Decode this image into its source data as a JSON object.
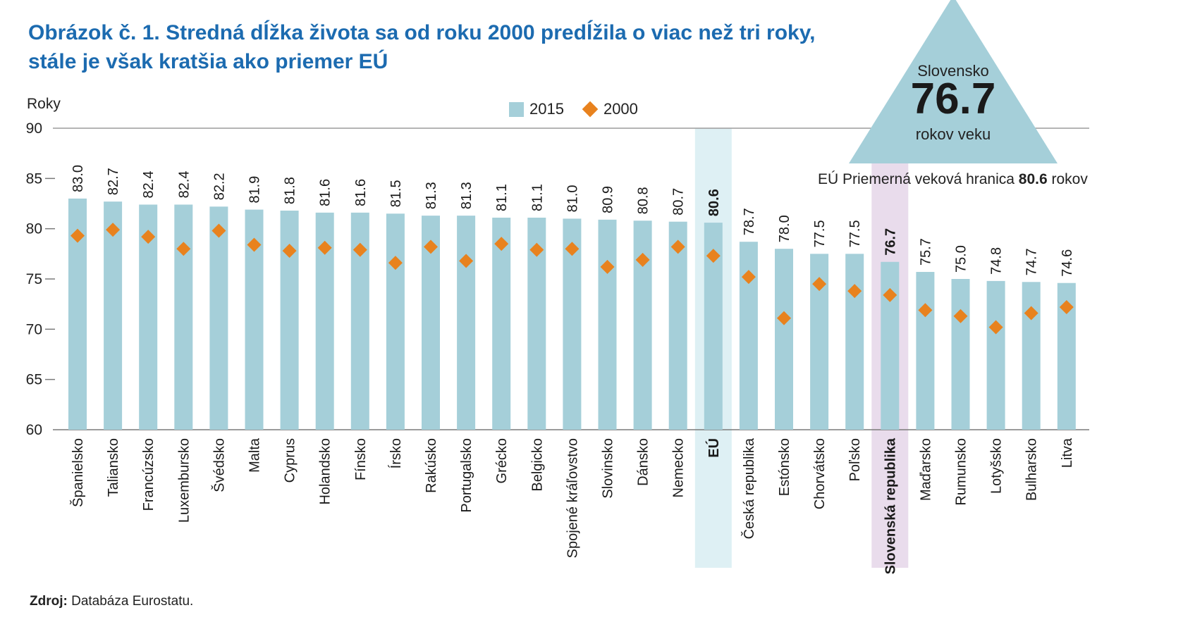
{
  "title": {
    "line1": "Obrázok č. 1. Stredná dĺžka života sa od roku 2000 predĺžila o viac než tri roky,",
    "line2": "stále je však kratšia ako priemer EÚ"
  },
  "y_axis_title": "Roky",
  "legend": {
    "items": [
      {
        "label": "2015",
        "marker": "square",
        "color": "#a5cfd9"
      },
      {
        "label": "2000",
        "marker": "diamond",
        "color": "#e8821e"
      }
    ]
  },
  "annotation": {
    "country": "Slovensko",
    "value": "76.7",
    "unit": "rokov veku"
  },
  "eu_note": {
    "prefix": "EÚ Priemerná veková hranica ",
    "value": "80.6",
    "suffix": " rokov"
  },
  "source": {
    "label": "Zdroj:",
    "text": " Databáza Eurostatu."
  },
  "colors": {
    "bar_2015": "#a5cfd9",
    "marker_2000": "#e8821e",
    "title_blue": "#1c6bb0",
    "band_eu": "#def0f4",
    "band_slovakia": "#e9dcec",
    "triangle": "#a5cfd9"
  },
  "chart_data": {
    "type": "bar",
    "title": "Stredná dĺžka života sa od roku 2000 predĺžila o viac než tri roky, stále je však kratšia ako priemer EÚ",
    "xlabel": "",
    "ylabel": "Roky",
    "ylim": [
      60,
      90
    ],
    "yticks": [
      60,
      65,
      70,
      75,
      80,
      85,
      90
    ],
    "grid": "horizontal lines at 90 and 60 only",
    "legend_position": "top center",
    "categories": [
      "Španielsko",
      "Taliansko",
      "Francúzsko",
      "Luxembursko",
      "Švédsko",
      "Malta",
      "Cyprus",
      "Holandsko",
      "Fínsko",
      "Írsko",
      "Rakúsko",
      "Portugalsko",
      "Grécko",
      "Belgicko",
      "Spojené kráľovstvo",
      "Slovinsko",
      "Dánsko",
      "Nemecko",
      "EÚ",
      "Česká republika",
      "Estónsko",
      "Chorvátsko",
      "Poľsko",
      "Slovenská republika",
      "Maďarsko",
      "Rumunsko",
      "Lotyšsko",
      "Bulharsko",
      "Litva"
    ],
    "series": [
      {
        "name": "2015",
        "type": "bar",
        "color": "#a5cfd9",
        "values": [
          83.0,
          82.7,
          82.4,
          82.4,
          82.2,
          81.9,
          81.8,
          81.6,
          81.6,
          81.5,
          81.3,
          81.3,
          81.1,
          81.1,
          81.0,
          80.9,
          80.8,
          80.7,
          80.6,
          78.7,
          78.0,
          77.5,
          77.5,
          76.7,
          75.7,
          75.0,
          74.8,
          74.7,
          74.6
        ]
      },
      {
        "name": "2000",
        "type": "scatter",
        "marker": "diamond",
        "color": "#e8821e",
        "values": [
          79.3,
          79.9,
          79.2,
          78.0,
          79.8,
          78.4,
          77.8,
          78.1,
          77.9,
          76.6,
          78.2,
          76.8,
          78.5,
          77.9,
          78.0,
          76.2,
          76.9,
          78.2,
          77.3,
          75.2,
          71.1,
          74.5,
          73.8,
          73.4,
          71.9,
          71.3,
          70.2,
          71.6,
          72.2
        ]
      }
    ],
    "highlight": [
      {
        "category": "EÚ",
        "color": "#def0f4",
        "bold_labels": true
      },
      {
        "category": "Slovenská republika",
        "color": "#e9dcec",
        "bold_labels": true
      }
    ]
  }
}
